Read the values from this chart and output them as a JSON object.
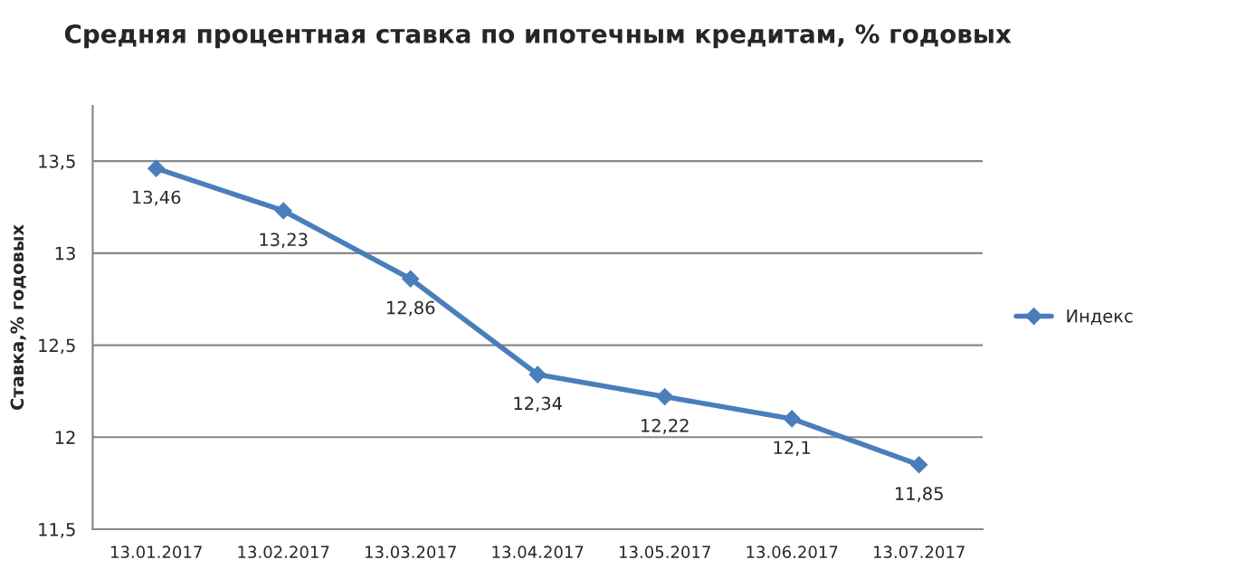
{
  "chart_data": {
    "type": "line",
    "title": "Средняя процентная ставка по ипотечным кредитам, % годовых",
    "ylabel": "Ставка,% годовых",
    "categories": [
      "13.01.2017",
      "13.02.2017",
      "13.03.2017",
      "13.04.2017",
      "13.05.2017",
      "13.06.2017",
      "13.07.2017"
    ],
    "series": [
      {
        "name": "Индекс",
        "color": "#4a7ebb",
        "values": [
          13.46,
          13.23,
          12.86,
          12.34,
          12.22,
          12.1,
          11.85
        ],
        "value_labels": [
          "13,46",
          "13,23",
          "12,86",
          "12,34",
          "12,22",
          "12,1",
          "11,85"
        ]
      }
    ],
    "ylim": [
      11.5,
      13.8
    ],
    "yticks": [
      {
        "value": 11.5,
        "label": "11,5"
      },
      12,
      {
        "value": 12.5,
        "label": "12,5"
      },
      13,
      {
        "value": 13.5,
        "label": "13,5"
      }
    ],
    "grid": "y",
    "legend": "right",
    "marker": "diamond",
    "line_style": "solid"
  }
}
